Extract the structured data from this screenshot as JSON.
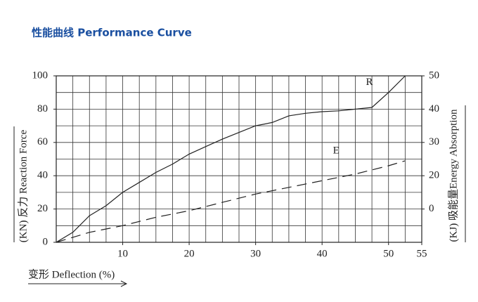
{
  "chart_data": {
    "type": "line",
    "title": "性能曲线 Performance Curve",
    "x_label": "变形 Deflection (%)",
    "y_label": "(KN) 反力 Reaction Force",
    "y2_label": "(KJ) 吸能量Energy Absorption",
    "xlim": [
      0,
      55
    ],
    "xticks": [
      10,
      20,
      30,
      40,
      50,
      55
    ],
    "ylim": [
      0,
      100
    ],
    "yticks": [
      0,
      20,
      40,
      60,
      80,
      100
    ],
    "y2lim": [
      0,
      50
    ],
    "y2ticks": [
      {
        "value": 10,
        "label": "0"
      },
      20,
      30,
      40,
      50
    ],
    "grid": true,
    "series": [
      {
        "name": "R",
        "color": "#222222",
        "line_style": "solid",
        "x": [
          0,
          2.5,
          5,
          7.5,
          10,
          12.5,
          15,
          17.5,
          20,
          22.5,
          25,
          27.5,
          30,
          32.5,
          35,
          37.5,
          40,
          42.5,
          45,
          47.5,
          50,
          52.5
        ],
        "values": [
          0,
          6,
          16,
          22,
          30,
          36,
          42,
          47,
          53,
          57.5,
          62,
          66,
          70,
          72,
          76,
          77.5,
          78.5,
          79,
          80,
          81,
          90,
          100
        ]
      },
      {
        "name": "E",
        "color": "#222222",
        "line_style": "dashed",
        "axis": "y2",
        "x": [
          0,
          5,
          10,
          15,
          20,
          25,
          30,
          35,
          40,
          45,
          50,
          52.5
        ],
        "values": [
          0,
          3,
          5,
          7.5,
          9.5,
          12,
          14.5,
          16.5,
          18.5,
          20.5,
          23,
          24.5
        ]
      }
    ]
  }
}
